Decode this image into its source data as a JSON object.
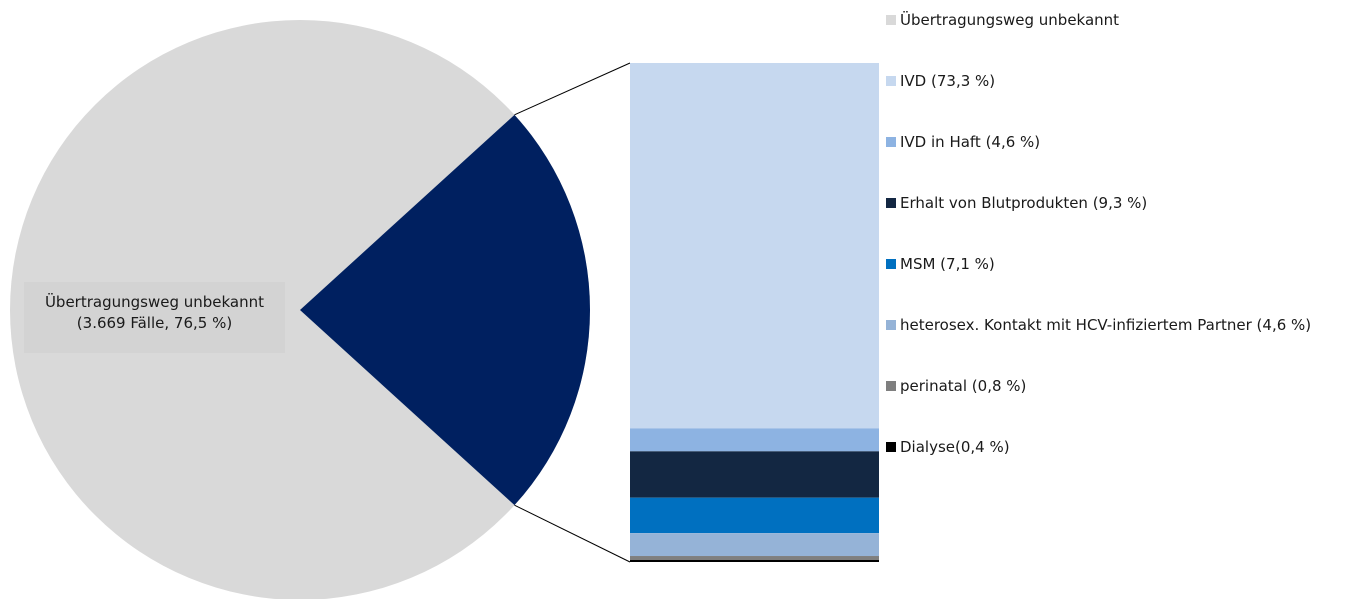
{
  "chart_data": {
    "type": "bar-of-pie",
    "pie": {
      "slices": [
        {
          "label": "Übertragungsweg unbekannt",
          "percent": 76.5,
          "color": "#d9d9d9"
        },
        {
          "label": "",
          "percent": 23.5,
          "color": "#002060"
        }
      ],
      "annotation_line1": "Übertragungsweg unbekannt",
      "annotation_line2": "(3.669 Fälle, 76,5 %)"
    },
    "stacked_bar": [
      {
        "label": "IVD (73,3 %)",
        "percent": 73.3,
        "color": "#c6d8ef"
      },
      {
        "label": "IVD in Haft (4,6 %)",
        "percent": 4.6,
        "color": "#8db3e2"
      },
      {
        "label": "Erhalt von Blutprodukten (9,3 %)",
        "percent": 9.3,
        "color": "#132742"
      },
      {
        "label": "MSM (7,1 %)",
        "percent": 7.1,
        "color": "#0070c0"
      },
      {
        "label": "heterosex. Kontakt mit HCV-infiziertem Partner (4,6 %)",
        "percent": 4.6,
        "color": "#95b3d7"
      },
      {
        "label": "perinatal (0,8 %)",
        "percent": 0.8,
        "color": "#7f7f7f"
      },
      {
        "label": "Dialyse(0,4 %)",
        "percent": 0.4,
        "color": "#000000"
      }
    ],
    "legend": [
      {
        "label": "Übertragungsweg unbekannt",
        "color": "#d9d9d9"
      },
      {
        "label": "IVD (73,3 %)",
        "color": "#c6d8ef"
      },
      {
        "label": "IVD in Haft (4,6 %)",
        "color": "#8db3e2"
      },
      {
        "label": "Erhalt von Blutprodukten (9,3 %)",
        "color": "#132742"
      },
      {
        "label": "MSM (7,1 %)",
        "color": "#0070c0"
      },
      {
        "label": "heterosex. Kontakt mit HCV-infiziertem Partner (4,6 %)",
        "color": "#95b3d7"
      },
      {
        "label": "perinatal (0,8 %)",
        "color": "#7f7f7f"
      },
      {
        "label": "Dialyse(0,4 %)",
        "color": "#000000"
      }
    ],
    "legend_position": "right"
  }
}
